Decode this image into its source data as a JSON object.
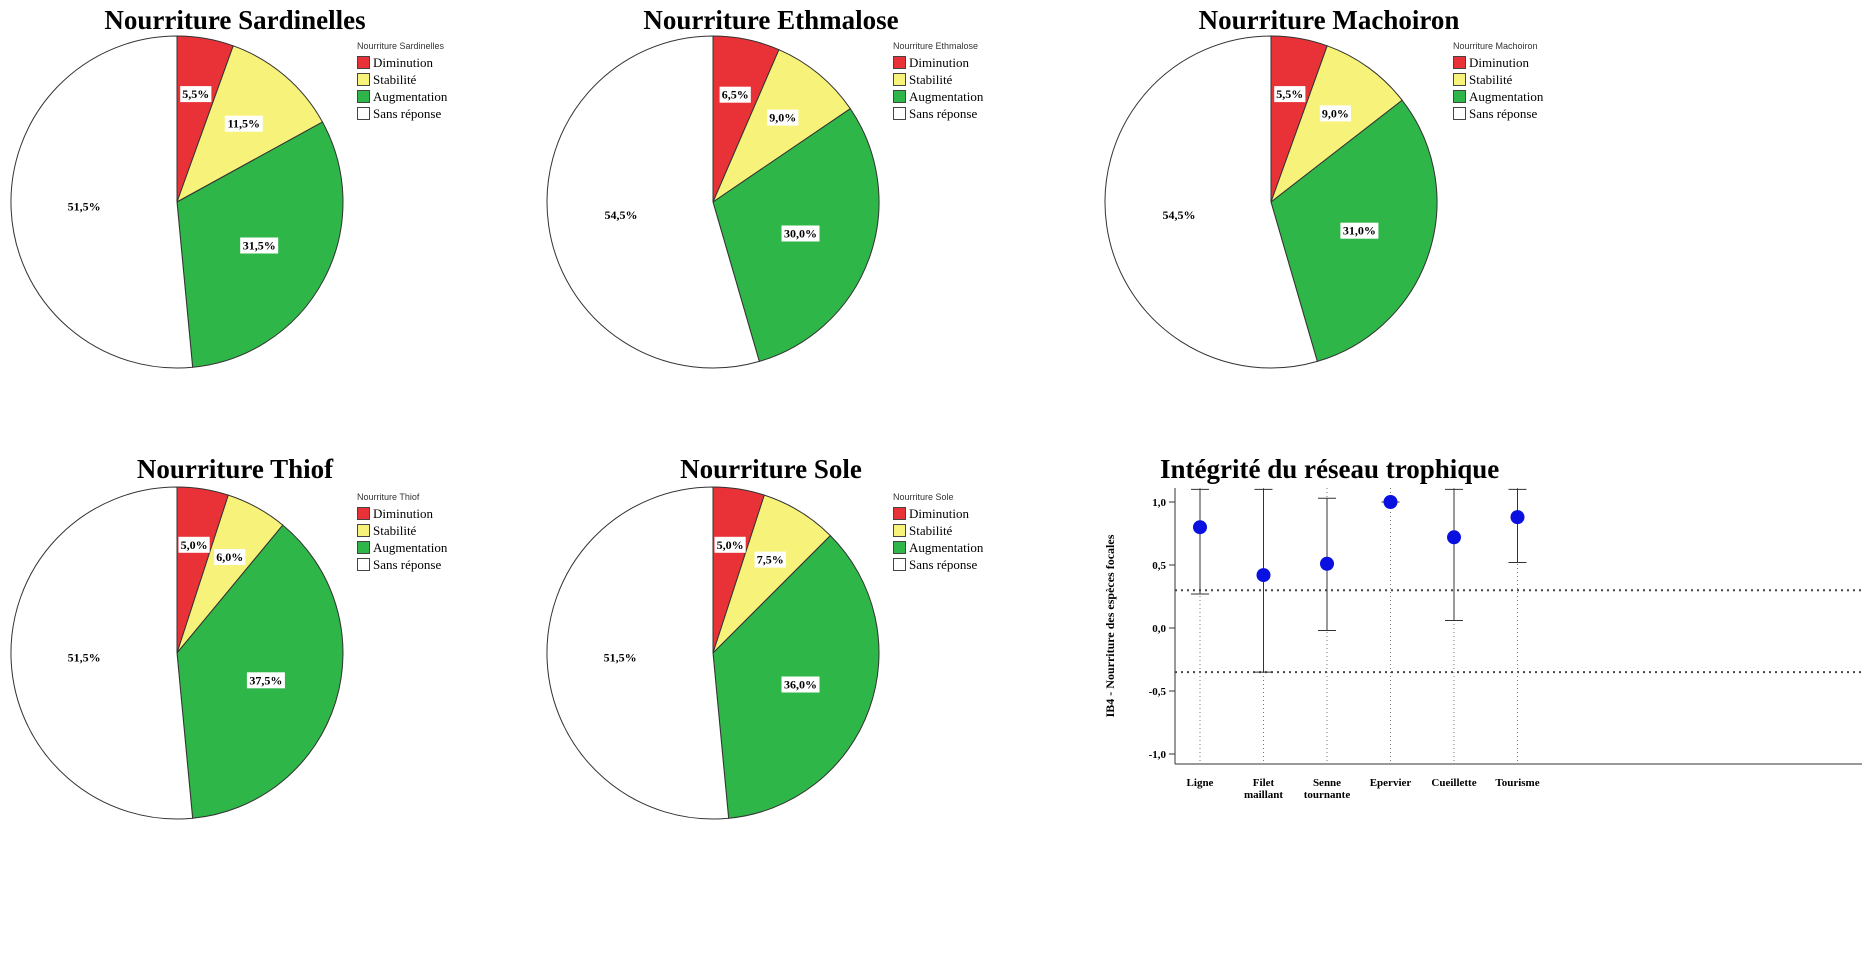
{
  "colors": {
    "diminution": "#e83237",
    "stabilite": "#f7f37a",
    "augmentation": "#2eb648",
    "sans_reponse": "#ffffff",
    "point": "#0a10e0"
  },
  "chart_data": [
    {
      "type": "pie",
      "title": "Nourriture Sardinelles",
      "legend_title": "Nourriture Sardinelles",
      "legend_placement": "right",
      "categories": [
        "Diminution",
        "Stabilité",
        "Augmentation",
        "Sans réponse"
      ],
      "values": [
        5.5,
        11.5,
        31.5,
        51.5
      ],
      "labels": [
        "5,5%",
        "11,5%",
        "31,5%",
        "51,5%"
      ]
    },
    {
      "type": "pie",
      "title": "Nourriture Ethmalose",
      "legend_title": "Nourriture Ethmalose",
      "legend_placement": "right",
      "categories": [
        "Diminution",
        "Stabilité",
        "Augmentation",
        "Sans réponse"
      ],
      "values": [
        6.5,
        9.0,
        30.0,
        54.5
      ],
      "labels": [
        "6,5%",
        "9,0%",
        "30,0%",
        "54,5%"
      ]
    },
    {
      "type": "pie",
      "title": "Nourriture Machoiron",
      "legend_title": "Nourriture Machoiron",
      "legend_placement": "right",
      "categories": [
        "Diminution",
        "Stabilité",
        "Augmentation",
        "Sans réponse"
      ],
      "values": [
        5.5,
        9.0,
        31.0,
        54.5
      ],
      "labels": [
        "5,5%",
        "9,0%",
        "31,0%",
        "54,5%"
      ]
    },
    {
      "type": "pie",
      "title": "Nourriture Thiof",
      "legend_title": "Nourriture Thiof",
      "legend_placement": "right",
      "categories": [
        "Diminution",
        "Stabilité",
        "Augmentation",
        "Sans réponse"
      ],
      "values": [
        5.0,
        6.0,
        37.5,
        51.5
      ],
      "labels": [
        "5,0%",
        "6,0%",
        "37,5%",
        "51,5%"
      ]
    },
    {
      "type": "pie",
      "title": "Nourriture Sole",
      "legend_title": "Nourriture Sole",
      "legend_placement": "right",
      "categories": [
        "Diminution",
        "Stabilité",
        "Augmentation",
        "Sans réponse"
      ],
      "values": [
        5.0,
        7.5,
        36.0,
        51.5
      ],
      "labels": [
        "5,0%",
        "7,5%",
        "36,0%",
        "51,5%"
      ]
    },
    {
      "type": "scatter",
      "subtype": "error-bar",
      "title": "Intégrité du réseau trophique",
      "ylabel": "IB4 - Nourriture des espèces focales",
      "xlabel": "",
      "categories": [
        "Ligne",
        "Filet maillant",
        "Senne tournante",
        "Epervier",
        "Cueillette",
        "Tourisme"
      ],
      "category_lines": [
        [
          "Ligne"
        ],
        [
          "Filet",
          "maillant"
        ],
        [
          "Senne",
          "tournante"
        ],
        [
          "Epervier"
        ],
        [
          "Cueillette"
        ],
        [
          "Tourisme"
        ]
      ],
      "means": [
        0.8,
        0.42,
        0.51,
        1.0,
        0.72,
        0.88
      ],
      "error_low": [
        0.27,
        -0.35,
        -0.02,
        1.0,
        0.06,
        0.52
      ],
      "error_high": [
        1.1,
        1.1,
        1.03,
        1.0,
        1.1,
        1.1
      ],
      "ylim": [
        -1.1,
        1.1
      ],
      "yticks": [
        -1.0,
        -0.5,
        0.0,
        0.5,
        1.0
      ],
      "ytick_labels": [
        "-1,0",
        "-0,5",
        "0,0",
        "0,5",
        "1,0"
      ],
      "reference_lines": [
        0.3,
        -0.35
      ],
      "grid": false
    }
  ]
}
